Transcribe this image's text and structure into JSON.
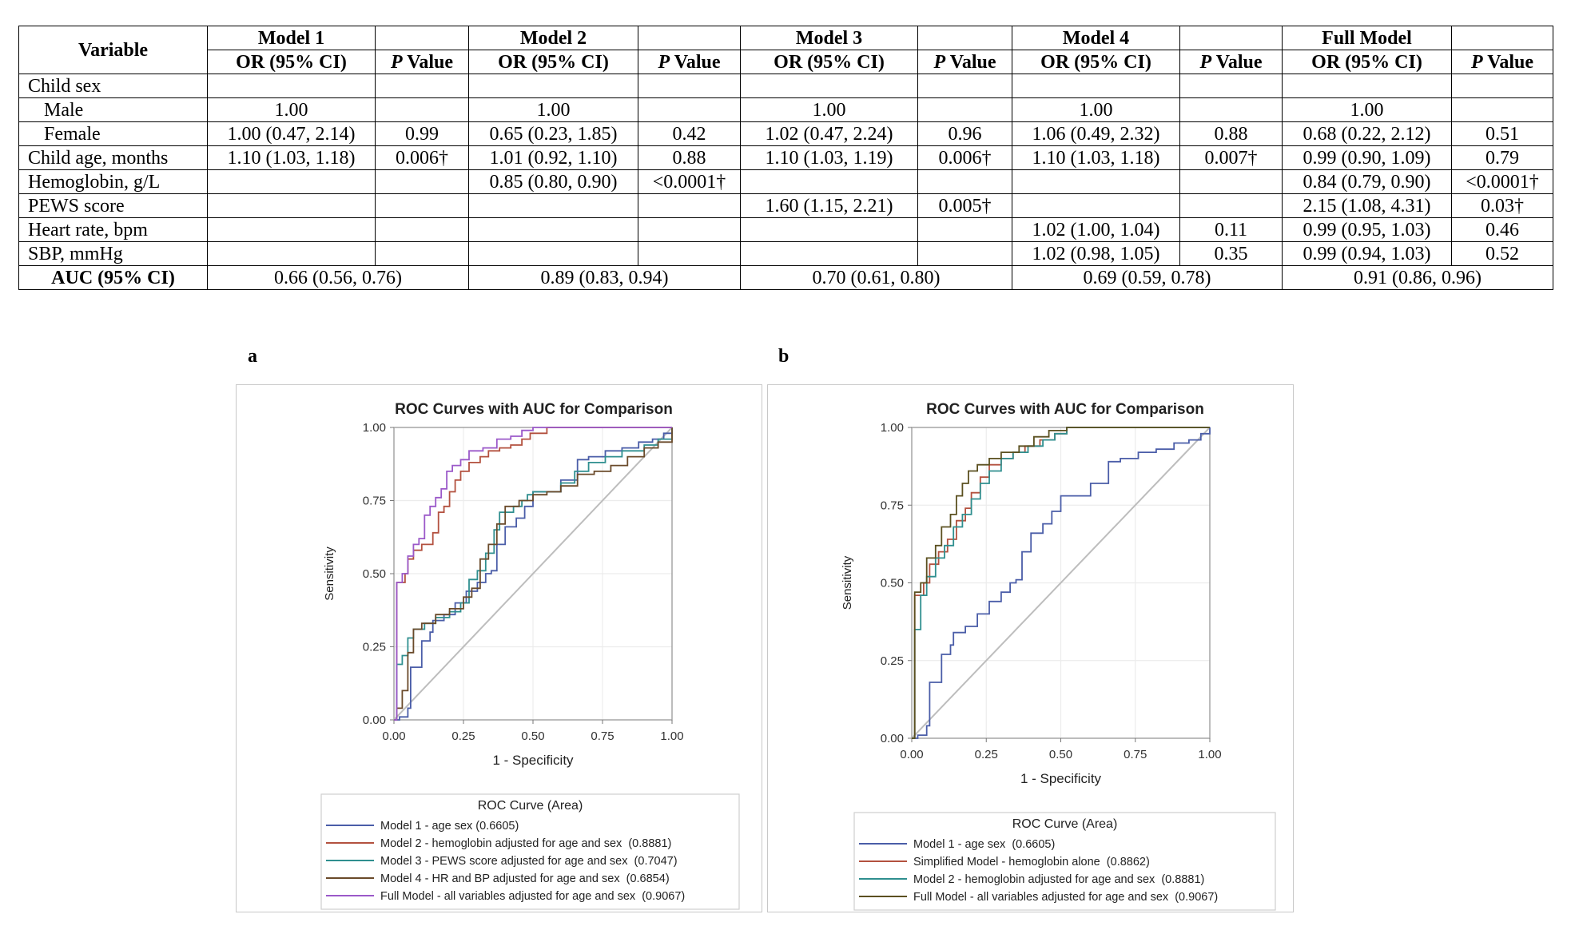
{
  "table": {
    "header_variable": "Variable",
    "models": [
      "Model 1",
      "Model 2",
      "Model 3",
      "Model 4",
      "Full Model"
    ],
    "sub_or": "OR (95% CI)",
    "sub_p_italic": "P",
    "sub_p_rest": " Value",
    "rows": [
      {
        "label": "Child sex",
        "indent": false,
        "cells": [
          "",
          "",
          "",
          "",
          "",
          "",
          "",
          "",
          "",
          ""
        ]
      },
      {
        "label": "Male",
        "indent": true,
        "cells": [
          "1.00",
          "",
          "1.00",
          "",
          "1.00",
          "",
          "1.00",
          "",
          "1.00",
          ""
        ]
      },
      {
        "label": "Female",
        "indent": true,
        "cells": [
          "1.00 (0.47, 2.14)",
          "0.99",
          "0.65 (0.23, 1.85)",
          "0.42",
          "1.02 (0.47, 2.24)",
          "0.96",
          "1.06 (0.49, 2.32)",
          "0.88",
          "0.68 (0.22, 2.12)",
          "0.51"
        ]
      },
      {
        "label": "Child age, months",
        "indent": false,
        "cells": [
          "1.10 (1.03, 1.18)",
          "0.006†",
          "1.01 (0.92, 1.10)",
          "0.88",
          "1.10 (1.03, 1.19)",
          "0.006†",
          "1.10 (1.03, 1.18)",
          "0.007†",
          "0.99 (0.90, 1.09)",
          "0.79"
        ]
      },
      {
        "label": "Hemoglobin, g/L",
        "indent": false,
        "cells": [
          "",
          "",
          "0.85 (0.80, 0.90)",
          "<0.0001†",
          "",
          "",
          "",
          "",
          "0.84 (0.79, 0.90)",
          "<0.0001†"
        ]
      },
      {
        "label": "PEWS score",
        "indent": false,
        "cells": [
          "",
          "",
          "",
          "",
          "1.60 (1.15, 2.21)",
          "0.005†",
          "",
          "",
          "2.15 (1.08, 4.31)",
          "0.03†"
        ]
      },
      {
        "label": "Heart rate, bpm",
        "indent": false,
        "cells": [
          "",
          "",
          "",
          "",
          "",
          "",
          "1.02 (1.00, 1.04)",
          "0.11",
          "0.99 (0.95, 1.03)",
          "0.46"
        ]
      },
      {
        "label": "SBP, mmHg",
        "indent": false,
        "cells": [
          "",
          "",
          "",
          "",
          "",
          "",
          "1.02 (0.98, 1.05)",
          "0.35",
          "0.99 (0.94, 1.03)",
          "0.52"
        ]
      }
    ],
    "auc_label": "AUC (95% CI)",
    "auc_values": [
      "0.66 (0.56, 0.76)",
      "0.89 (0.83, 0.94)",
      "0.70 (0.61, 0.80)",
      "0.69 (0.59, 0.78)",
      "0.91 (0.86, 0.96)"
    ]
  },
  "chart_data": [
    {
      "panel_label": "a",
      "type": "line",
      "title": "ROC Curves with AUC for Comparison",
      "xlabel": "1 - Specificity",
      "ylabel": "Sensitivity",
      "xlim": [
        0,
        1
      ],
      "ylim": [
        0,
        1
      ],
      "ticks": [
        "0.00",
        "0.25",
        "0.50",
        "0.75",
        "1.00"
      ],
      "grid": true,
      "legend_title": "ROC Curve (Area)",
      "legend_position": "bottom",
      "reference_color": "#bdbdbd",
      "series": [
        {
          "name": "Model 1 - age sex (0.6605)",
          "color": "#4a5da8",
          "points": [
            [
              0,
              0
            ],
            [
              0.02,
              0.01
            ],
            [
              0.05,
              0.04
            ],
            [
              0.06,
              0.18
            ],
            [
              0.09,
              0.18
            ],
            [
              0.1,
              0.27
            ],
            [
              0.13,
              0.3
            ],
            [
              0.14,
              0.34
            ],
            [
              0.18,
              0.36
            ],
            [
              0.22,
              0.4
            ],
            [
              0.26,
              0.44
            ],
            [
              0.3,
              0.47
            ],
            [
              0.33,
              0.5
            ],
            [
              0.35,
              0.51
            ],
            [
              0.37,
              0.6
            ],
            [
              0.4,
              0.66
            ],
            [
              0.44,
              0.69
            ],
            [
              0.47,
              0.73
            ],
            [
              0.5,
              0.78
            ],
            [
              0.55,
              0.78
            ],
            [
              0.6,
              0.82
            ],
            [
              0.66,
              0.89
            ],
            [
              0.7,
              0.9
            ],
            [
              0.76,
              0.92
            ],
            [
              0.82,
              0.93
            ],
            [
              0.88,
              0.95
            ],
            [
              0.93,
              0.96
            ],
            [
              0.97,
              0.98
            ],
            [
              1,
              1
            ]
          ]
        },
        {
          "name": "Model 2 - hemoglobin adjusted for age and sex  (0.8881)",
          "color": "#b3513f",
          "points": [
            [
              0,
              0
            ],
            [
              0.01,
              0.47
            ],
            [
              0.04,
              0.5
            ],
            [
              0.05,
              0.55
            ],
            [
              0.07,
              0.58
            ],
            [
              0.1,
              0.6
            ],
            [
              0.14,
              0.64
            ],
            [
              0.16,
              0.71
            ],
            [
              0.18,
              0.73
            ],
            [
              0.2,
              0.78
            ],
            [
              0.22,
              0.82
            ],
            [
              0.24,
              0.85
            ],
            [
              0.27,
              0.88
            ],
            [
              0.31,
              0.9
            ],
            [
              0.34,
              0.92
            ],
            [
              0.38,
              0.93
            ],
            [
              0.42,
              0.94
            ],
            [
              0.46,
              0.96
            ],
            [
              0.49,
              0.98
            ],
            [
              0.55,
              1
            ],
            [
              1,
              1
            ]
          ]
        },
        {
          "name": "Model 3 - PEWS score adjusted for age and sex  (0.7047)",
          "color": "#2f8f8f",
          "points": [
            [
              0,
              0
            ],
            [
              0.01,
              0.19
            ],
            [
              0.03,
              0.22
            ],
            [
              0.05,
              0.28
            ],
            [
              0.07,
              0.31
            ],
            [
              0.11,
              0.33
            ],
            [
              0.15,
              0.35
            ],
            [
              0.2,
              0.37
            ],
            [
              0.24,
              0.4
            ],
            [
              0.27,
              0.48
            ],
            [
              0.3,
              0.51
            ],
            [
              0.33,
              0.57
            ],
            [
              0.36,
              0.65
            ],
            [
              0.38,
              0.71
            ],
            [
              0.43,
              0.73
            ],
            [
              0.46,
              0.75
            ],
            [
              0.48,
              0.77
            ],
            [
              0.5,
              0.78
            ],
            [
              0.55,
              0.78
            ],
            [
              0.6,
              0.81
            ],
            [
              0.65,
              0.85
            ],
            [
              0.7,
              0.88
            ],
            [
              0.76,
              0.9
            ],
            [
              0.82,
              0.92
            ],
            [
              0.9,
              0.94
            ],
            [
              0.95,
              0.96
            ],
            [
              1,
              1
            ]
          ]
        },
        {
          "name": "Model 4 - HR and BP adjusted for age and sex  (0.6854)",
          "color": "#6a4a2a",
          "points": [
            [
              0,
              0
            ],
            [
              0.01,
              0.04
            ],
            [
              0.03,
              0.1
            ],
            [
              0.05,
              0.23
            ],
            [
              0.07,
              0.31
            ],
            [
              0.1,
              0.33
            ],
            [
              0.15,
              0.36
            ],
            [
              0.2,
              0.38
            ],
            [
              0.25,
              0.42
            ],
            [
              0.28,
              0.45
            ],
            [
              0.31,
              0.55
            ],
            [
              0.34,
              0.6
            ],
            [
              0.37,
              0.67
            ],
            [
              0.4,
              0.73
            ],
            [
              0.45,
              0.75
            ],
            [
              0.5,
              0.77
            ],
            [
              0.55,
              0.78
            ],
            [
              0.6,
              0.8
            ],
            [
              0.66,
              0.84
            ],
            [
              0.72,
              0.85
            ],
            [
              0.78,
              0.87
            ],
            [
              0.84,
              0.9
            ],
            [
              0.9,
              0.93
            ],
            [
              0.95,
              0.95
            ],
            [
              1,
              1
            ]
          ]
        },
        {
          "name": "Full Model - all variables adjusted for age and sex  (0.9067)",
          "color": "#9b59c9",
          "points": [
            [
              0,
              0
            ],
            [
              0.01,
              0.47
            ],
            [
              0.03,
              0.5
            ],
            [
              0.05,
              0.56
            ],
            [
              0.07,
              0.6
            ],
            [
              0.09,
              0.62
            ],
            [
              0.11,
              0.7
            ],
            [
              0.13,
              0.73
            ],
            [
              0.15,
              0.76
            ],
            [
              0.17,
              0.79
            ],
            [
              0.19,
              0.85
            ],
            [
              0.21,
              0.87
            ],
            [
              0.24,
              0.89
            ],
            [
              0.27,
              0.92
            ],
            [
              0.32,
              0.93
            ],
            [
              0.37,
              0.96
            ],
            [
              0.42,
              0.97
            ],
            [
              0.46,
              0.99
            ],
            [
              0.5,
              1
            ],
            [
              1,
              1
            ]
          ]
        }
      ]
    },
    {
      "panel_label": "b",
      "type": "line",
      "title": "ROC Curves with AUC for Comparison",
      "xlabel": "1 - Specificity",
      "ylabel": "Sensitivity",
      "xlim": [
        0,
        1
      ],
      "ylim": [
        0,
        1
      ],
      "ticks": [
        "0.00",
        "0.25",
        "0.50",
        "0.75",
        "1.00"
      ],
      "grid": true,
      "legend_title": "ROC Curve (Area)",
      "legend_position": "bottom",
      "reference_color": "#bdbdbd",
      "series": [
        {
          "name": "Model 1 - age sex  (0.6605)",
          "color": "#4a5da8",
          "points": [
            [
              0,
              0
            ],
            [
              0.02,
              0.01
            ],
            [
              0.05,
              0.04
            ],
            [
              0.06,
              0.18
            ],
            [
              0.09,
              0.18
            ],
            [
              0.1,
              0.27
            ],
            [
              0.13,
              0.3
            ],
            [
              0.14,
              0.34
            ],
            [
              0.18,
              0.36
            ],
            [
              0.22,
              0.4
            ],
            [
              0.26,
              0.44
            ],
            [
              0.3,
              0.47
            ],
            [
              0.33,
              0.5
            ],
            [
              0.35,
              0.51
            ],
            [
              0.37,
              0.6
            ],
            [
              0.4,
              0.66
            ],
            [
              0.44,
              0.69
            ],
            [
              0.47,
              0.73
            ],
            [
              0.5,
              0.78
            ],
            [
              0.55,
              0.78
            ],
            [
              0.6,
              0.82
            ],
            [
              0.66,
              0.89
            ],
            [
              0.7,
              0.9
            ],
            [
              0.76,
              0.92
            ],
            [
              0.82,
              0.93
            ],
            [
              0.88,
              0.95
            ],
            [
              0.93,
              0.96
            ],
            [
              0.97,
              0.98
            ],
            [
              1,
              1
            ]
          ]
        },
        {
          "name": "Simplified Model - hemoglobin alone  (0.8862)",
          "color": "#b3513f",
          "points": [
            [
              0,
              0
            ],
            [
              0.01,
              0.46
            ],
            [
              0.04,
              0.5
            ],
            [
              0.06,
              0.56
            ],
            [
              0.09,
              0.6
            ],
            [
              0.12,
              0.64
            ],
            [
              0.15,
              0.7
            ],
            [
              0.18,
              0.74
            ],
            [
              0.2,
              0.79
            ],
            [
              0.23,
              0.84
            ],
            [
              0.26,
              0.88
            ],
            [
              0.3,
              0.9
            ],
            [
              0.34,
              0.92
            ],
            [
              0.38,
              0.94
            ],
            [
              0.43,
              0.96
            ],
            [
              0.48,
              0.98
            ],
            [
              0.52,
              1
            ],
            [
              1,
              1
            ]
          ]
        },
        {
          "name": "Model 2 - hemoglobin adjusted for age and sex  (0.8881)",
          "color": "#2f8f8f",
          "points": [
            [
              0,
              0
            ],
            [
              0.01,
              0.35
            ],
            [
              0.03,
              0.46
            ],
            [
              0.05,
              0.52
            ],
            [
              0.08,
              0.58
            ],
            [
              0.11,
              0.62
            ],
            [
              0.14,
              0.68
            ],
            [
              0.17,
              0.72
            ],
            [
              0.2,
              0.77
            ],
            [
              0.23,
              0.82
            ],
            [
              0.26,
              0.86
            ],
            [
              0.3,
              0.9
            ],
            [
              0.34,
              0.92
            ],
            [
              0.39,
              0.94
            ],
            [
              0.44,
              0.96
            ],
            [
              0.48,
              0.98
            ],
            [
              0.52,
              1
            ],
            [
              1,
              1
            ]
          ]
        },
        {
          "name": "Full Model - all variables adjusted for age and sex  (0.9067)",
          "color": "#5b5020",
          "points": [
            [
              0,
              0
            ],
            [
              0.01,
              0.47
            ],
            [
              0.03,
              0.5
            ],
            [
              0.05,
              0.58
            ],
            [
              0.08,
              0.62
            ],
            [
              0.1,
              0.68
            ],
            [
              0.13,
              0.72
            ],
            [
              0.15,
              0.78
            ],
            [
              0.17,
              0.82
            ],
            [
              0.19,
              0.86
            ],
            [
              0.22,
              0.88
            ],
            [
              0.26,
              0.9
            ],
            [
              0.3,
              0.92
            ],
            [
              0.36,
              0.94
            ],
            [
              0.41,
              0.97
            ],
            [
              0.46,
              0.99
            ],
            [
              0.52,
              1
            ],
            [
              1,
              1
            ]
          ]
        }
      ]
    }
  ]
}
